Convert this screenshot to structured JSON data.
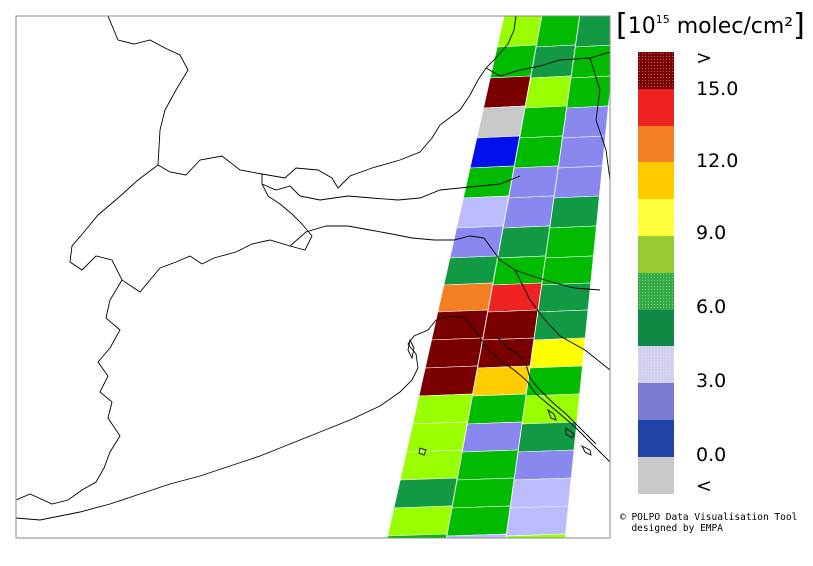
{
  "unit_label": {
    "open": "[",
    "base": "10",
    "exponent": "15",
    "rest": " molec/cm²",
    "close": "]"
  },
  "legend": {
    "labels": [
      ">",
      "15.0",
      "12.0",
      "9.0",
      "6.0",
      "3.0",
      "0.0",
      "<"
    ],
    "swatches": [
      {
        "color": "#7a0000",
        "pattern": "dots"
      },
      {
        "color": "#ee2222",
        "pattern": "solid"
      },
      {
        "color": "#f37f22",
        "pattern": "solid"
      },
      {
        "color": "#ffcc00",
        "pattern": "solid"
      },
      {
        "color": "#ffff33",
        "pattern": "dots"
      },
      {
        "color": "#99cc33",
        "pattern": "solid"
      },
      {
        "color": "#33aa44",
        "pattern": "dots"
      },
      {
        "color": "#118844",
        "pattern": "solid"
      },
      {
        "color": "#d0d0ee",
        "pattern": "dots"
      },
      {
        "color": "#7a7ad0",
        "pattern": "solid"
      },
      {
        "color": "#2244aa",
        "pattern": "solid"
      },
      {
        "color": "#c8c8c8",
        "pattern": "solid"
      }
    ]
  },
  "credit": {
    "line1": "© POLPO Data Visualisation Tool",
    "line2": "  designed by EMPA"
  },
  "colors": {
    "dark_red": "#7a0000",
    "red": "#ee2222",
    "orange": "#f37f22",
    "amber": "#ffcc00",
    "yellow": "#ffff00",
    "lime": "#99ff00",
    "green": "#00bb00",
    "dark_green": "#119944",
    "lavender": "#bbbbff",
    "periwinkle": "#8888ee",
    "blue": "#0011ee",
    "grey": "#c8c8c8",
    "map_border": "#000000",
    "frame": "#888888"
  }
}
